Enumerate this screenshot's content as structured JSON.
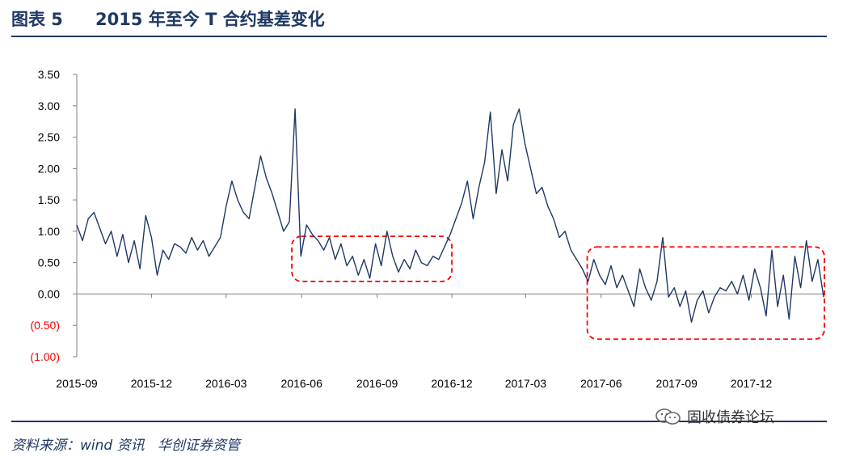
{
  "header": {
    "figure_no": "图表 5",
    "title": "2015 年至今 T 合约基差变化"
  },
  "source": {
    "label": "资料来源：wind 资讯",
    "org": "华创证券资管"
  },
  "watermark": {
    "text": "固收债券论坛",
    "icon": "wechat-icon"
  },
  "colors": {
    "series": "#1f3864",
    "negative_label": "#ff0000",
    "highlight_box": "#ff0000",
    "axis": "#7f7f7f",
    "title": "#1f3864"
  },
  "chart_data": {
    "type": "line",
    "title": "",
    "xlabel": "",
    "ylabel": "",
    "ylim": [
      -1.0,
      3.5
    ],
    "y_ticks": [
      {
        "value": 3.5,
        "label": "3.50"
      },
      {
        "value": 3.0,
        "label": "3.00"
      },
      {
        "value": 2.5,
        "label": "2.50"
      },
      {
        "value": 2.0,
        "label": "2.00"
      },
      {
        "value": 1.5,
        "label": "1.50"
      },
      {
        "value": 1.0,
        "label": "1.00"
      },
      {
        "value": 0.5,
        "label": "0.50"
      },
      {
        "value": 0.0,
        "label": "0.00"
      },
      {
        "value": -0.5,
        "label": "(0.50)"
      },
      {
        "value": -1.0,
        "label": "(1.00)"
      }
    ],
    "x_range": [
      "2015-09-01",
      "2018-02-28"
    ],
    "x_ticks": [
      "2015-09",
      "2015-12",
      "2016-03",
      "2016-06",
      "2016-09",
      "2016-12",
      "2017-03",
      "2017-06",
      "2017-09",
      "2017-12"
    ],
    "grid": false,
    "legend": "none",
    "highlight_regions": [
      {
        "x": [
          "2016-05-20",
          "2016-12-01"
        ],
        "y": [
          0.2,
          0.92
        ]
      },
      {
        "x": [
          "2017-05-15",
          "2018-02-28"
        ],
        "y": [
          -0.72,
          0.75
        ]
      }
    ],
    "series": [
      {
        "x": [
          "2015-09-01",
          "2015-09-08",
          "2015-09-15",
          "2015-09-22",
          "2015-09-29",
          "2015-10-06",
          "2015-10-13",
          "2015-10-20",
          "2015-10-27",
          "2015-11-03",
          "2015-11-10",
          "2015-11-17",
          "2015-11-24",
          "2015-12-01",
          "2015-12-08",
          "2015-12-15",
          "2015-12-22",
          "2015-12-29",
          "2016-01-05",
          "2016-01-12",
          "2016-01-19",
          "2016-01-26",
          "2016-02-02",
          "2016-02-09",
          "2016-02-16",
          "2016-02-23",
          "2016-03-01",
          "2016-03-08",
          "2016-03-15",
          "2016-03-22",
          "2016-03-29",
          "2016-04-05",
          "2016-04-12",
          "2016-04-19",
          "2016-04-26",
          "2016-05-03",
          "2016-05-10",
          "2016-05-17",
          "2016-05-24",
          "2016-05-31",
          "2016-06-07",
          "2016-06-14",
          "2016-06-21",
          "2016-06-28",
          "2016-07-05",
          "2016-07-12",
          "2016-07-19",
          "2016-07-26",
          "2016-08-02",
          "2016-08-09",
          "2016-08-16",
          "2016-08-23",
          "2016-08-30",
          "2016-09-06",
          "2016-09-13",
          "2016-09-20",
          "2016-09-27",
          "2016-10-04",
          "2016-10-11",
          "2016-10-18",
          "2016-10-25",
          "2016-11-01",
          "2016-11-08",
          "2016-11-15",
          "2016-11-22",
          "2016-11-29",
          "2016-12-06",
          "2016-12-13",
          "2016-12-20",
          "2016-12-27",
          "2017-01-03",
          "2017-01-10",
          "2017-01-17",
          "2017-01-24",
          "2017-01-31",
          "2017-02-07",
          "2017-02-14",
          "2017-02-21",
          "2017-02-28",
          "2017-03-07",
          "2017-03-14",
          "2017-03-21",
          "2017-03-28",
          "2017-04-04",
          "2017-04-11",
          "2017-04-18",
          "2017-04-25",
          "2017-05-02",
          "2017-05-09",
          "2017-05-16",
          "2017-05-23",
          "2017-05-30",
          "2017-06-06",
          "2017-06-13",
          "2017-06-20",
          "2017-06-27",
          "2017-07-04",
          "2017-07-11",
          "2017-07-18",
          "2017-07-25",
          "2017-08-01",
          "2017-08-08",
          "2017-08-15",
          "2017-08-22",
          "2017-08-29",
          "2017-09-05",
          "2017-09-12",
          "2017-09-19",
          "2017-09-26",
          "2017-10-03",
          "2017-10-10",
          "2017-10-17",
          "2017-10-24",
          "2017-10-31",
          "2017-11-07",
          "2017-11-14",
          "2017-11-21",
          "2017-11-28",
          "2017-12-05",
          "2017-12-12",
          "2017-12-19",
          "2017-12-26",
          "2018-01-02",
          "2018-01-09",
          "2018-01-16",
          "2018-01-23",
          "2018-01-30",
          "2018-02-06",
          "2018-02-13",
          "2018-02-20",
          "2018-02-27"
        ],
        "values": [
          1.1,
          0.85,
          1.2,
          1.3,
          1.05,
          0.8,
          1.0,
          0.6,
          0.95,
          0.5,
          0.85,
          0.4,
          1.25,
          0.9,
          0.3,
          0.7,
          0.55,
          0.8,
          0.75,
          0.65,
          0.9,
          0.7,
          0.85,
          0.6,
          0.75,
          0.9,
          1.4,
          1.8,
          1.5,
          1.3,
          1.2,
          1.7,
          2.2,
          1.85,
          1.6,
          1.3,
          1.0,
          1.15,
          2.95,
          0.6,
          1.1,
          0.95,
          0.85,
          0.7,
          0.9,
          0.55,
          0.8,
          0.45,
          0.6,
          0.3,
          0.55,
          0.25,
          0.8,
          0.45,
          1.0,
          0.6,
          0.35,
          0.55,
          0.4,
          0.7,
          0.5,
          0.45,
          0.6,
          0.55,
          0.75,
          0.95,
          1.2,
          1.45,
          1.8,
          1.2,
          1.7,
          2.1,
          2.9,
          1.6,
          2.3,
          1.8,
          2.7,
          2.95,
          2.4,
          2.0,
          1.6,
          1.7,
          1.4,
          1.2,
          0.9,
          1.0,
          0.7,
          0.55,
          0.4,
          0.2,
          0.55,
          0.3,
          0.15,
          0.45,
          0.1,
          0.3,
          0.05,
          -0.2,
          0.4,
          0.1,
          -0.1,
          0.2,
          0.9,
          -0.05,
          0.1,
          -0.2,
          0.05,
          -0.45,
          -0.1,
          0.05,
          -0.3,
          -0.05,
          0.1,
          0.05,
          0.2,
          0.0,
          0.3,
          -0.1,
          0.4,
          0.1,
          -0.35,
          0.7,
          -0.2,
          0.3,
          -0.4,
          0.6,
          0.1,
          0.85,
          0.2,
          0.55,
          -0.05
        ]
      }
    ]
  }
}
